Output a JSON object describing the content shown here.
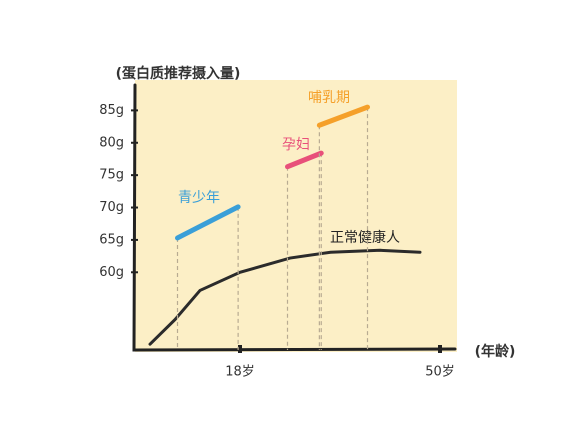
{
  "chart_data": {
    "type": "line",
    "ylabel": "(蛋白质推荐摄入量)",
    "xlabel": "(年龄)",
    "xlim": [
      1,
      52
    ],
    "xticks": [
      {
        "value": 18,
        "label": "18岁"
      },
      {
        "value": 50,
        "label": "50岁"
      }
    ],
    "ylim": [
      48,
      90
    ],
    "yticks": [
      {
        "value": 60,
        "label": "60g"
      },
      {
        "value": 65,
        "label": "65g"
      },
      {
        "value": 70,
        "label": "70g"
      },
      {
        "value": 75,
        "label": "75g"
      },
      {
        "value": 80,
        "label": "80g"
      },
      {
        "value": 85,
        "label": "85g"
      }
    ],
    "series": [
      {
        "name": "正常健康人",
        "color": "#2b2b2b",
        "x": [
          3.6,
          7.6,
          11.6,
          18,
          26,
          32.5,
          40.4,
          46.8
        ],
        "values": [
          48.9,
          52.7,
          57.2,
          60,
          62.2,
          63.1,
          63.4,
          63.1
        ]
      },
      {
        "name": "青少年",
        "color": "#3a9fd8",
        "x": [
          8,
          17.7
        ],
        "values": [
          65.3,
          70.1
        ]
      },
      {
        "name": "孕妇",
        "color": "#e8507a",
        "x": [
          25.6,
          31
        ],
        "values": [
          76.3,
          78.4
        ]
      },
      {
        "name": "哺乳期",
        "color": "#f5a02a",
        "x": [
          30.7,
          38.4
        ],
        "values": [
          82.7,
          85.5
        ]
      }
    ]
  }
}
